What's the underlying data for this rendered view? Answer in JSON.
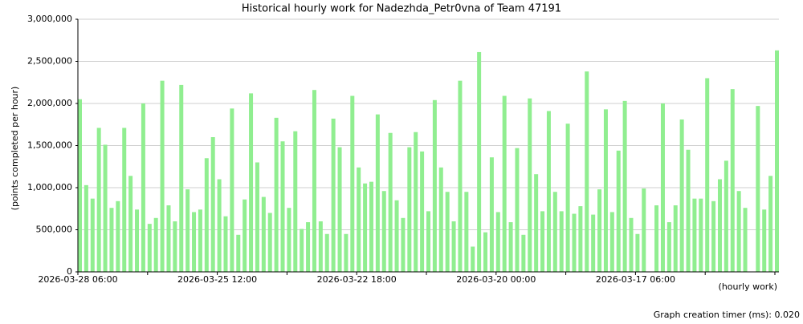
{
  "chart_data": {
    "type": "bar",
    "title": "Historical hourly work for Nadezhda_Petr0vna of Team 47191",
    "y_label": "(points completed per hour)",
    "x_label": "(hourly work)",
    "footer": "Graph creation timer (ms): 0.020",
    "color": "#90ee90",
    "grid": true,
    "ylim": [
      0,
      3000000
    ],
    "yticks": [
      {
        "value": 0,
        "label": "0"
      },
      {
        "value": 500000,
        "label": "500,000"
      },
      {
        "value": 1000000,
        "label": "1,000,000"
      },
      {
        "value": 1500000,
        "label": "1,500,000"
      },
      {
        "value": 2000000,
        "label": "2,000,000"
      },
      {
        "value": 2500000,
        "label": "2,500,000"
      },
      {
        "value": 3000000,
        "label": "3,000,000"
      }
    ],
    "categories": [
      "2026-03-28 06:00",
      null,
      null,
      null,
      null,
      null,
      null,
      null,
      null,
      null,
      null,
      null,
      null,
      null,
      null,
      null,
      null,
      null,
      null,
      null,
      null,
      null,
      "2026-03-25 12:00",
      null,
      null,
      null,
      null,
      null,
      null,
      null,
      null,
      null,
      null,
      null,
      null,
      null,
      null,
      null,
      null,
      null,
      null,
      null,
      null,
      null,
      "2026-03-22 18:00",
      null,
      null,
      null,
      null,
      null,
      null,
      null,
      null,
      null,
      null,
      null,
      null,
      null,
      null,
      null,
      null,
      null,
      null,
      null,
      null,
      null,
      "2026-03-20 00:00",
      null,
      null,
      null,
      null,
      null,
      null,
      null,
      null,
      null,
      null,
      null,
      null,
      null,
      null,
      null,
      null,
      null,
      null,
      null,
      null,
      null,
      "2026-03-17 06:00",
      null,
      null,
      null,
      null,
      null,
      null,
      null,
      null,
      null,
      null,
      null,
      null,
      null,
      null,
      null,
      null,
      null,
      null,
      null,
      null,
      null,
      null
    ],
    "values": [
      2050000,
      1030000,
      870000,
      1710000,
      1510000,
      760000,
      840000,
      1710000,
      1140000,
      740000,
      2000000,
      570000,
      640000,
      2270000,
      790000,
      600000,
      2220000,
      980000,
      710000,
      740000,
      1350000,
      1600000,
      1100000,
      660000,
      1940000,
      440000,
      860000,
      2120000,
      1300000,
      890000,
      700000,
      1830000,
      1550000,
      760000,
      1670000,
      510000,
      590000,
      2160000,
      600000,
      450000,
      1820000,
      1480000,
      450000,
      2090000,
      1240000,
      1050000,
      1070000,
      1870000,
      960000,
      1650000,
      850000,
      640000,
      1480000,
      1660000,
      1430000,
      720000,
      2040000,
      1240000,
      950000,
      600000,
      2270000,
      950000,
      300000,
      2610000,
      470000,
      1360000,
      710000,
      2090000,
      590000,
      1470000,
      440000,
      2060000,
      1160000,
      720000,
      1910000,
      950000,
      720000,
      1760000,
      690000,
      780000,
      2380000,
      680000,
      980000,
      1930000,
      710000,
      1440000,
      2030000,
      640000,
      450000,
      990000,
      0,
      790000,
      2000000,
      590000,
      790000,
      1810000,
      1450000,
      870000,
      870000,
      2300000,
      840000,
      1100000,
      1320000,
      2170000,
      960000,
      760000,
      0,
      1970000,
      740000,
      1140000,
      2630000
    ]
  }
}
